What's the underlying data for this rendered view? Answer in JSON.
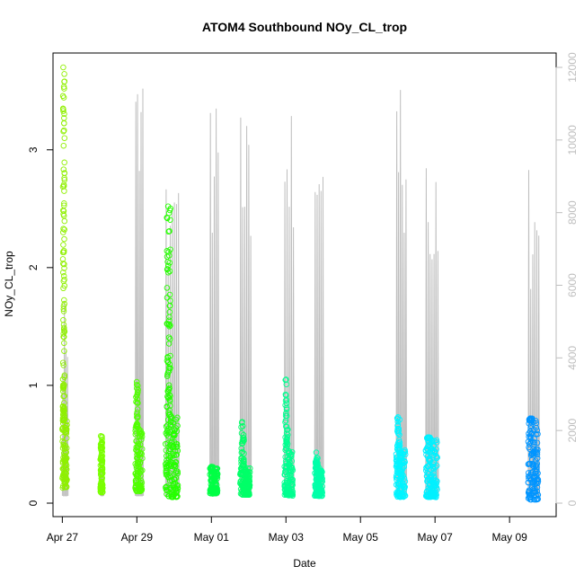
{
  "chart_data": {
    "type": "scatter",
    "title": "ATOM4 Southbound NOy_CL_trop",
    "xlabel": "Date",
    "ylabel": "NOy_CL_trop",
    "ylim": [
      0,
      3.7
    ],
    "y2lim": [
      0,
      12000
    ],
    "xlim": [
      "2018-04-26T18:00",
      "2018-05-10T06:00"
    ],
    "x_ticks": [
      {
        "date": "2018-04-27",
        "label": "Apr 27"
      },
      {
        "date": "2018-04-29",
        "label": "Apr 29"
      },
      {
        "date": "2018-05-01",
        "label": "May 01"
      },
      {
        "date": "2018-05-03",
        "label": "May 03"
      },
      {
        "date": "2018-05-05",
        "label": "May 05"
      },
      {
        "date": "2018-05-07",
        "label": "May 07"
      },
      {
        "date": "2018-05-09",
        "label": "May 09"
      }
    ],
    "y_ticks": [
      0,
      1,
      2,
      3
    ],
    "y2_ticks": [
      0,
      2000,
      4000,
      6000,
      8000,
      10000,
      12000
    ],
    "grid": false,
    "point_colors": {
      "flight1": "#8ff000",
      "flight2": "#7aff00",
      "flight3": "#50ff00",
      "flight4": "#26ff00",
      "flight5": "#00ff45",
      "flight6": "#00ff68",
      "flight7": "#00ff90",
      "flight8": "#00ffa8",
      "flight9": "#00ffbb",
      "flight10": "#00f4ff",
      "flight11": "#00f0ff",
      "flight12": "#0095ff"
    },
    "altitude_line_color": "#bebebe",
    "series": [
      {
        "start": "2018-04-27T00:00",
        "end": "2018-04-27T03:00",
        "color": "#8ff000",
        "min": 0.13,
        "core_max": 0.7,
        "max": 3.7,
        "alt_max": 5750
      },
      {
        "start": "2018-04-28T00:30",
        "end": "2018-04-28T02:00",
        "color": "#7aff00",
        "min": 0.09,
        "core_max": 0.45,
        "max": 0.57,
        "alt_max": 1250
      },
      {
        "start": "2018-04-28T23:00",
        "end": "2018-04-29T03:30",
        "color": "#50ff00",
        "min": 0.1,
        "core_max": 0.65,
        "max": 1.03,
        "alt_max": 11500
      },
      {
        "start": "2018-04-29T18:30",
        "end": "2018-04-30T02:30",
        "color": "#26ff00",
        "min": 0.05,
        "core_max": 0.75,
        "max": 2.52,
        "alt_max": 10100
      },
      {
        "start": "2018-04-30T23:00",
        "end": "2018-05-01T04:00",
        "color": "#00ff45",
        "min": 0.08,
        "core_max": 0.3,
        "max": 0.31,
        "alt_max": 12000
      },
      {
        "start": "2018-05-01T18:30",
        "end": "2018-05-02T01:00",
        "color": "#00ff68",
        "min": 0.07,
        "core_max": 0.3,
        "max": 0.69,
        "alt_max": 10700
      },
      {
        "start": "2018-05-02T23:00",
        "end": "2018-05-03T04:30",
        "color": "#00ff90",
        "min": 0.06,
        "core_max": 0.45,
        "max": 1.05,
        "alt_max": 11700
      },
      {
        "start": "2018-05-03T18:30",
        "end": "2018-05-03T23:30",
        "color": "#00ffa8",
        "min": 0.06,
        "core_max": 0.3,
        "max": 0.43,
        "alt_max": 10300
      },
      {
        "start": "2018-05-05T23:00",
        "end": "2018-05-06T05:00",
        "color": "#00f4ff",
        "min": 0.05,
        "core_max": 0.45,
        "max": 0.73,
        "alt_max": 11500
      },
      {
        "start": "2018-05-06T18:00",
        "end": "2018-05-07T01:30",
        "color": "#00f0ff",
        "min": 0.05,
        "core_max": 0.55,
        "max": 0.56,
        "alt_max": 9600
      },
      {
        "start": "2018-05-09T12:00",
        "end": "2018-05-09T18:30",
        "color": "#0095ff",
        "min": 0.03,
        "core_max": 0.7,
        "max": 0.72,
        "alt_max": 9300
      }
    ]
  }
}
